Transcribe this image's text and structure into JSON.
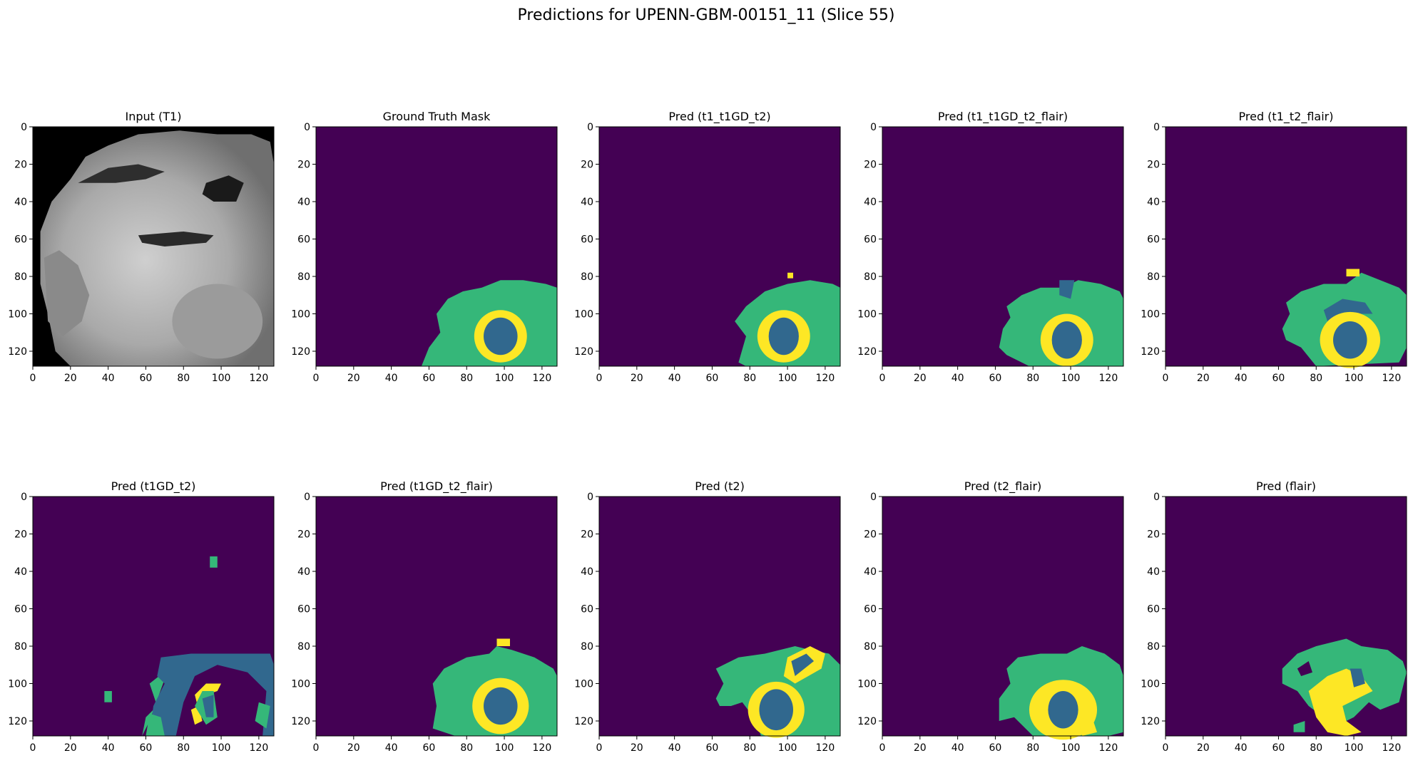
{
  "figure": {
    "title": "Predictions for UPENN-GBM-00151_11 (Slice 55)"
  },
  "axes_ticks": {
    "x": [
      "0",
      "20",
      "40",
      "60",
      "80",
      "100",
      "120"
    ],
    "y": [
      "0",
      "20",
      "40",
      "60",
      "80",
      "100",
      "120"
    ],
    "range": [
      0,
      128
    ]
  },
  "palette": {
    "background": "#440154",
    "edema": "#35b779",
    "necrotic_core": "#31688e",
    "enhancing": "#fde725",
    "mri_dark": "#000000",
    "mri_tissue": "#bdbdbd"
  },
  "panels": [
    {
      "title": "Input (T1)",
      "kind": "mri"
    },
    {
      "title": "Ground Truth Mask",
      "kind": "mask"
    },
    {
      "title": "Pred (t1_t1GD_t2)",
      "kind": "mask"
    },
    {
      "title": "Pred (t1_t1GD_t2_flair)",
      "kind": "mask"
    },
    {
      "title": "Pred (t1_t2_flair)",
      "kind": "mask"
    },
    {
      "title": "Pred (t1GD_t2)",
      "kind": "mask"
    },
    {
      "title": "Pred (t1GD_t2_flair)",
      "kind": "mask"
    },
    {
      "title": "Pred (t2)",
      "kind": "mask"
    },
    {
      "title": "Pred (t2_flair)",
      "kind": "mask"
    },
    {
      "title": "Pred (flair)",
      "kind": "mask"
    }
  ]
}
